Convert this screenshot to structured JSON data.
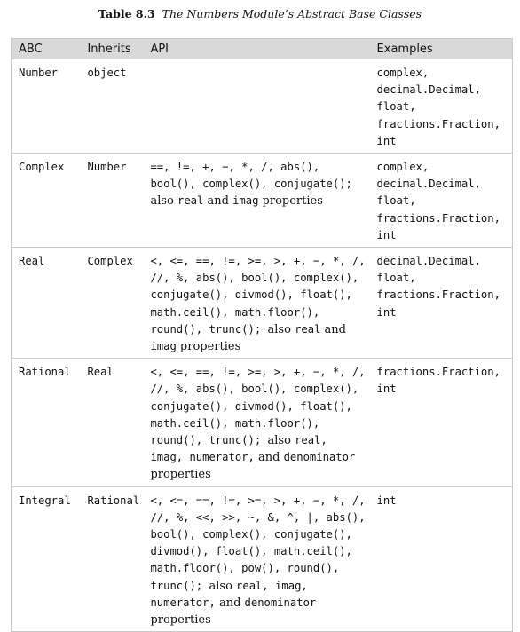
{
  "caption": {
    "label": "Table 8.3",
    "title": "The Numbers Module’s Abstract Base Classes"
  },
  "headers": {
    "abc": "ABC",
    "inherits": "Inherits",
    "api": "API",
    "examples": "Examples"
  },
  "rows": [
    {
      "abc": "Number",
      "inherits": "object",
      "api": [],
      "examples": [
        "complex,",
        "decimal.Decimal,",
        "float,",
        "fractions.Fraction,",
        "int"
      ]
    },
    {
      "abc": "Complex",
      "inherits": "Number",
      "api": [
        {
          "m": "==, !=, +, −, *, /, abs(), bool(), complex(), conjugate(); "
        },
        {
          "t": "also "
        },
        {
          "m": "real"
        },
        {
          "t": " and "
        },
        {
          "m": "imag"
        },
        {
          "t": " properties"
        }
      ],
      "examples": [
        "complex,",
        "decimal.Decimal,",
        "float,",
        "fractions.Fraction,",
        "int"
      ]
    },
    {
      "abc": "Real",
      "inherits": "Complex",
      "api": [
        {
          "m": "<, <=, ==, !=, >=, >, +, −, *, /, //, %, abs(), bool(), complex(), conjugate(), divmod(), float(), math.ceil(), math.floor(), round(), trunc(); "
        },
        {
          "t": "also "
        },
        {
          "m": "real"
        },
        {
          "t": " and "
        },
        {
          "m": "imag"
        },
        {
          "t": " properties"
        }
      ],
      "examples": [
        "decimal.Decimal,",
        "float,",
        "fractions.Fraction,",
        "int"
      ]
    },
    {
      "abc": "Rational",
      "inherits": "Real",
      "api": [
        {
          "m": "<, <=, ==, !=, >=, >, +, −, *, /, //, %, abs(), bool(), complex(), conjugate(), divmod(), float(), math.ceil(), math.floor(), round(), trunc(); "
        },
        {
          "t": "also "
        },
        {
          "m": "real, imag, numerator,"
        },
        {
          "t": " and "
        },
        {
          "m": "denominator"
        },
        {
          "t": " properties"
        }
      ],
      "examples": [
        "fractions.Fraction,",
        "int"
      ]
    },
    {
      "abc": "Integral",
      "inherits": "Rational",
      "api": [
        {
          "m": "<, <=, ==, !=, >=, >, +, −, *, /, //, %, <<, >>, ~, &, ^, |, abs(), bool(), complex(), conjugate(), divmod(), float(), math.ceil(), math.floor(), pow(), round(), trunc(); "
        },
        {
          "t": "also "
        },
        {
          "m": "real, imag, numerator,"
        },
        {
          "t": " and "
        },
        {
          "m": "denominator"
        },
        {
          "t": " properties"
        }
      ],
      "examples": [
        "int"
      ]
    }
  ]
}
